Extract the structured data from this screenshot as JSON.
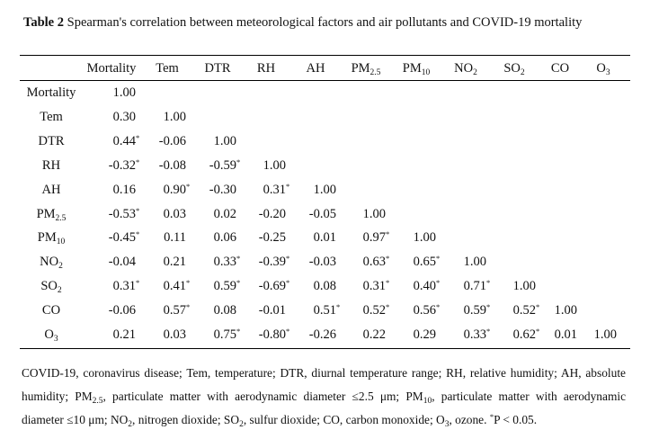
{
  "caption": {
    "label": "Table 2",
    "text": "Spearman's correlation between meteorological factors and air pollutants and COVID-19 mortality"
  },
  "columns": [
    {
      "base": "Mortality",
      "sub": ""
    },
    {
      "base": "Tem",
      "sub": ""
    },
    {
      "base": "DTR",
      "sub": ""
    },
    {
      "base": "RH",
      "sub": ""
    },
    {
      "base": "AH",
      "sub": ""
    },
    {
      "base": "PM",
      "sub": "2.5"
    },
    {
      "base": "PM",
      "sub": "10"
    },
    {
      "base": "NO",
      "sub": "2"
    },
    {
      "base": "SO",
      "sub": "2"
    },
    {
      "base": "CO",
      "sub": ""
    },
    {
      "base": "O",
      "sub": "3"
    }
  ],
  "rows": [
    {
      "base": "Mortality",
      "sub": "",
      "cells": [
        [
          "1.00",
          false
        ]
      ]
    },
    {
      "base": "Tem",
      "sub": "",
      "cells": [
        [
          "0.30",
          false
        ],
        [
          "1.00",
          false
        ]
      ]
    },
    {
      "base": "DTR",
      "sub": "",
      "cells": [
        [
          "0.44",
          true
        ],
        [
          "-0.06",
          false
        ],
        [
          "1.00",
          false
        ]
      ]
    },
    {
      "base": "RH",
      "sub": "",
      "cells": [
        [
          "-0.32",
          true
        ],
        [
          "-0.08",
          false
        ],
        [
          "-0.59",
          true
        ],
        [
          "1.00",
          false
        ]
      ]
    },
    {
      "base": "AH",
      "sub": "",
      "cells": [
        [
          "0.16",
          false
        ],
        [
          "0.90",
          true
        ],
        [
          "-0.30",
          false
        ],
        [
          "0.31",
          true
        ],
        [
          "1.00",
          false
        ]
      ]
    },
    {
      "base": "PM",
      "sub": "2.5",
      "cells": [
        [
          "-0.53",
          true
        ],
        [
          "0.03",
          false
        ],
        [
          "0.02",
          false
        ],
        [
          "-0.20",
          false
        ],
        [
          "-0.05",
          false
        ],
        [
          "1.00",
          false
        ]
      ]
    },
    {
      "base": "PM",
      "sub": "10",
      "cells": [
        [
          "-0.45",
          true
        ],
        [
          "0.11",
          false
        ],
        [
          "0.06",
          false
        ],
        [
          "-0.25",
          false
        ],
        [
          "0.01",
          false
        ],
        [
          "0.97",
          true
        ],
        [
          "1.00",
          false
        ]
      ]
    },
    {
      "base": "NO",
      "sub": "2",
      "cells": [
        [
          "-0.04",
          false
        ],
        [
          "0.21",
          false
        ],
        [
          "0.33",
          true
        ],
        [
          "-0.39",
          true
        ],
        [
          "-0.03",
          false
        ],
        [
          "0.63",
          true
        ],
        [
          "0.65",
          true
        ],
        [
          "1.00",
          false
        ]
      ]
    },
    {
      "base": "SO",
      "sub": "2",
      "cells": [
        [
          "0.31",
          true
        ],
        [
          "0.41",
          true
        ],
        [
          "0.59",
          true
        ],
        [
          "-0.69",
          true
        ],
        [
          "0.08",
          false
        ],
        [
          "0.31",
          true
        ],
        [
          "0.40",
          true
        ],
        [
          "0.71",
          true
        ],
        [
          "1.00",
          false
        ]
      ]
    },
    {
      "base": "CO",
      "sub": "",
      "cells": [
        [
          "-0.06",
          false
        ],
        [
          "0.57",
          true
        ],
        [
          "0.08",
          false
        ],
        [
          "-0.01",
          false
        ],
        [
          "0.51",
          true
        ],
        [
          "0.52",
          true
        ],
        [
          "0.56",
          true
        ],
        [
          "0.59",
          true
        ],
        [
          "0.52",
          true
        ],
        [
          "1.00",
          false
        ]
      ]
    },
    {
      "base": "O",
      "sub": "3",
      "cells": [
        [
          "0.21",
          false
        ],
        [
          "0.03",
          false
        ],
        [
          "0.75",
          true
        ],
        [
          "-0.80",
          true
        ],
        [
          "-0.26",
          false
        ],
        [
          "0.22",
          false
        ],
        [
          "0.29",
          false
        ],
        [
          "0.33",
          true
        ],
        [
          "0.62",
          true
        ],
        [
          "0.01",
          false
        ],
        [
          "1.00",
          false
        ]
      ]
    }
  ],
  "significance_mark": "*",
  "footnote": [
    {
      "t": "COVID-19, coronavirus disease; Tem, temperature; DTR, diurnal temperature range; RH, relative humidity; AH, absolute humidity; PM"
    },
    {
      "sub": "2.5"
    },
    {
      "t": ", particulate matter with aerodynamic diameter ≤2.5 μm; PM"
    },
    {
      "sub": "10"
    },
    {
      "t": ", particulate matter with aerodynamic diameter ≤10 μm; NO"
    },
    {
      "sub": "2"
    },
    {
      "t": ", nitrogen dioxide; SO"
    },
    {
      "sub": "2"
    },
    {
      "t": ", sulfur dioxide; CO, carbon monoxide; O"
    },
    {
      "sub": "3"
    },
    {
      "t": ", ozone. "
    },
    {
      "sup": "*"
    },
    {
      "t": "P < 0.05."
    }
  ]
}
